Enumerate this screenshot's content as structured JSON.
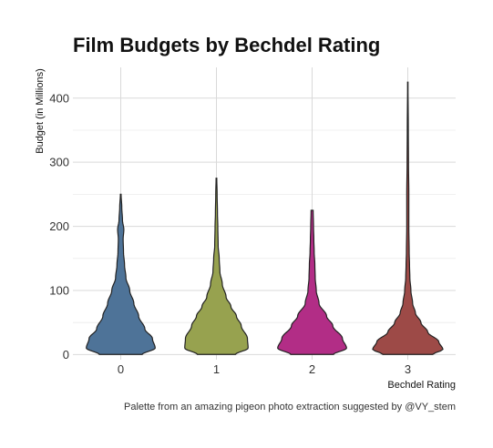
{
  "chart_data": {
    "type": "violin",
    "title": "Film Budgets by Bechdel Rating",
    "xlabel": "Bechdel Rating",
    "ylabel": "Budget (in Millions)",
    "caption": "Palette from an amazing pigeon photo extraction suggested by @VY_stem",
    "ylim": [
      -8,
      448
    ],
    "yticks": [
      0,
      100,
      200,
      300,
      400
    ],
    "grid": true,
    "categories": [
      "0",
      "1",
      "2",
      "3"
    ],
    "series": [
      {
        "category": "0",
        "color": "#4e7398",
        "min": 0.2,
        "max": 250,
        "density_profile": [
          [
            0,
            0.62
          ],
          [
            10,
            1.0
          ],
          [
            25,
            0.92
          ],
          [
            40,
            0.7
          ],
          [
            60,
            0.52
          ],
          [
            80,
            0.38
          ],
          [
            100,
            0.26
          ],
          [
            120,
            0.15
          ],
          [
            140,
            0.11
          ],
          [
            160,
            0.08
          ],
          [
            180,
            0.07
          ],
          [
            195,
            0.09
          ],
          [
            210,
            0.05
          ],
          [
            230,
            0.03
          ],
          [
            250,
            0.01
          ]
        ]
      },
      {
        "category": "1",
        "color": "#97a24f",
        "min": 0.2,
        "max": 275,
        "density_profile": [
          [
            0,
            0.55
          ],
          [
            10,
            0.92
          ],
          [
            25,
            0.9
          ],
          [
            45,
            0.72
          ],
          [
            60,
            0.58
          ],
          [
            75,
            0.42
          ],
          [
            90,
            0.28
          ],
          [
            110,
            0.17
          ],
          [
            130,
            0.1
          ],
          [
            150,
            0.08
          ],
          [
            170,
            0.05
          ],
          [
            200,
            0.04
          ],
          [
            220,
            0.03
          ],
          [
            250,
            0.02
          ],
          [
            275,
            0.01
          ]
        ]
      },
      {
        "category": "2",
        "color": "#b22d86",
        "min": 0.2,
        "max": 225,
        "density_profile": [
          [
            0,
            0.62
          ],
          [
            10,
            1.0
          ],
          [
            25,
            0.88
          ],
          [
            45,
            0.6
          ],
          [
            60,
            0.42
          ],
          [
            80,
            0.2
          ],
          [
            100,
            0.12
          ],
          [
            120,
            0.09
          ],
          [
            140,
            0.08
          ],
          [
            160,
            0.06
          ],
          [
            180,
            0.05
          ],
          [
            200,
            0.04
          ],
          [
            225,
            0.03
          ]
        ]
      },
      {
        "category": "3",
        "color": "#9d4a47",
        "min": 0.2,
        "max": 425,
        "density_profile": [
          [
            0,
            0.72
          ],
          [
            8,
            1.02
          ],
          [
            20,
            0.9
          ],
          [
            35,
            0.58
          ],
          [
            50,
            0.38
          ],
          [
            65,
            0.22
          ],
          [
            80,
            0.14
          ],
          [
            100,
            0.09
          ],
          [
            120,
            0.06
          ],
          [
            140,
            0.05
          ],
          [
            160,
            0.04
          ],
          [
            200,
            0.03
          ],
          [
            250,
            0.03
          ],
          [
            300,
            0.02
          ],
          [
            350,
            0.015
          ],
          [
            425,
            0.005
          ]
        ]
      }
    ]
  }
}
